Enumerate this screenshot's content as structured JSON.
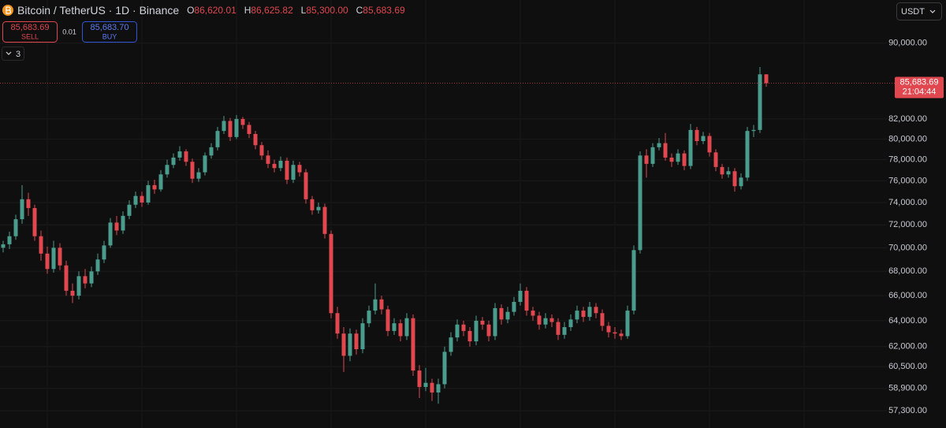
{
  "header": {
    "symbol": "Bitcoin / TetherUS · 1D · Binance",
    "ohlc": [
      {
        "label": "O",
        "value": "86,620.01"
      },
      {
        "label": "H",
        "value": "86,625.82"
      },
      {
        "label": "L",
        "value": "85,300.00"
      },
      {
        "label": "C",
        "value": "85,683.69"
      }
    ]
  },
  "trade": {
    "sell": {
      "price": "85,683.69",
      "label": "SELL"
    },
    "spread": "0.01",
    "buy": {
      "price": "85,683.70",
      "label": "BUY"
    }
  },
  "indicators_toggle": "3",
  "currency": "USDT",
  "chart_data": {
    "type": "candlestick",
    "log_scale": true,
    "grid": true,
    "up_color": "#4a9c8c",
    "down_color": "#e0474f",
    "ylim": [
      56100,
      94900
    ],
    "yticks": [
      {
        "value": 57300,
        "label": "57,300.00"
      },
      {
        "value": 58900,
        "label": "58,900.00"
      },
      {
        "value": 60500,
        "label": "60,500.00"
      },
      {
        "value": 62000,
        "label": "62,000.00"
      },
      {
        "value": 64000,
        "label": "64,000.00"
      },
      {
        "value": 66000,
        "label": "66,000.00"
      },
      {
        "value": 68000,
        "label": "68,000.00"
      },
      {
        "value": 70000,
        "label": "70,000.00"
      },
      {
        "value": 72000,
        "label": "72,000.00"
      },
      {
        "value": 74000,
        "label": "74,000.00"
      },
      {
        "value": 76000,
        "label": "76,000.00"
      },
      {
        "value": 78000,
        "label": "78,000.00"
      },
      {
        "value": 80000,
        "label": "80,000.00"
      },
      {
        "value": 82000,
        "label": "82,000.00"
      },
      {
        "value": 90000,
        "label": "90,000.00"
      }
    ],
    "last_price_label": "85,683.69",
    "countdown": "21:04:44",
    "ohlc": [
      [
        70000,
        70600,
        69600,
        70300
      ],
      [
        70300,
        71400,
        69900,
        71000
      ],
      [
        71000,
        72900,
        70700,
        72500
      ],
      [
        72500,
        75600,
        72100,
        74300
      ],
      [
        74300,
        74900,
        72800,
        73500
      ],
      [
        73500,
        73800,
        70600,
        71000
      ],
      [
        71000,
        71500,
        68900,
        69500
      ],
      [
        69500,
        70100,
        67800,
        68200
      ],
      [
        68200,
        70600,
        67900,
        70000
      ],
      [
        70000,
        70400,
        68100,
        68500
      ],
      [
        68500,
        68900,
        66000,
        66400
      ],
      [
        66400,
        67000,
        65400,
        66000
      ],
      [
        66000,
        68000,
        65700,
        67600
      ],
      [
        67600,
        68200,
        66600,
        67000
      ],
      [
        67000,
        68400,
        66700,
        68000
      ],
      [
        68000,
        69500,
        67700,
        69000
      ],
      [
        69000,
        70600,
        68700,
        70200
      ],
      [
        70200,
        72600,
        70000,
        72200
      ],
      [
        72200,
        72800,
        71100,
        71500
      ],
      [
        71500,
        73200,
        71200,
        72800
      ],
      [
        72800,
        74200,
        72500,
        73800
      ],
      [
        73800,
        75000,
        73500,
        74600
      ],
      [
        74600,
        75000,
        73600,
        74000
      ],
      [
        74000,
        76000,
        73800,
        75600
      ],
      [
        75600,
        76100,
        74800,
        75200
      ],
      [
        75200,
        77000,
        75000,
        76600
      ],
      [
        76600,
        78000,
        76300,
        77500
      ],
      [
        77500,
        78600,
        77200,
        78200
      ],
      [
        78200,
        79300,
        77900,
        78800
      ],
      [
        78800,
        79000,
        77400,
        77800
      ],
      [
        77800,
        78100,
        75800,
        76200
      ],
      [
        76200,
        77200,
        75900,
        76800
      ],
      [
        76800,
        78700,
        76500,
        78400
      ],
      [
        78400,
        79600,
        78100,
        79200
      ],
      [
        79200,
        81200,
        78900,
        80800
      ],
      [
        80800,
        82300,
        80500,
        81800
      ],
      [
        81800,
        82100,
        79800,
        80200
      ],
      [
        80200,
        82400,
        80000,
        82000
      ],
      [
        82000,
        82200,
        81000,
        81400
      ],
      [
        81400,
        81700,
        80100,
        80500
      ],
      [
        80500,
        80800,
        79000,
        79400
      ],
      [
        79400,
        79700,
        78000,
        78400
      ],
      [
        78400,
        78900,
        77200,
        77600
      ],
      [
        77600,
        78000,
        76800,
        77200
      ],
      [
        77200,
        78300,
        76900,
        77900
      ],
      [
        77900,
        78200,
        75700,
        76100
      ],
      [
        76100,
        77900,
        75800,
        77500
      ],
      [
        77500,
        77800,
        76400,
        76800
      ],
      [
        76800,
        77100,
        73900,
        74300
      ],
      [
        74300,
        74600,
        72900,
        73300
      ],
      [
        73300,
        74000,
        73000,
        73600
      ],
      [
        73600,
        73900,
        70800,
        71200
      ],
      [
        71200,
        71500,
        64200,
        64600
      ],
      [
        64600,
        65100,
        62600,
        63000
      ],
      [
        63000,
        63500,
        60100,
        61300
      ],
      [
        61300,
        63400,
        60900,
        63000
      ],
      [
        63000,
        63300,
        61400,
        61800
      ],
      [
        61800,
        64200,
        61500,
        63800
      ],
      [
        63800,
        65200,
        63500,
        64800
      ],
      [
        64800,
        67000,
        64500,
        65700
      ],
      [
        65700,
        66000,
        64500,
        64900
      ],
      [
        64900,
        65200,
        62800,
        63200
      ],
      [
        63200,
        64200,
        62900,
        63800
      ],
      [
        63800,
        64100,
        62400,
        62800
      ],
      [
        62800,
        64600,
        62500,
        64200
      ],
      [
        64200,
        64500,
        59800,
        60200
      ],
      [
        60200,
        60600,
        58200,
        59000
      ],
      [
        59000,
        60400,
        58700,
        59300
      ],
      [
        59300,
        59600,
        58000,
        58600
      ],
      [
        58600,
        59600,
        57800,
        59200
      ],
      [
        59200,
        62000,
        58900,
        61600
      ],
      [
        61600,
        63100,
        61300,
        62700
      ],
      [
        62700,
        64100,
        62400,
        63700
      ],
      [
        63700,
        64000,
        62800,
        63200
      ],
      [
        63200,
        63500,
        62000,
        62400
      ],
      [
        62400,
        64400,
        62100,
        64000
      ],
      [
        64000,
        64300,
        63300,
        63700
      ],
      [
        63700,
        64000,
        62400,
        62800
      ],
      [
        62800,
        65400,
        62500,
        65000
      ],
      [
        65000,
        65300,
        63700,
        64100
      ],
      [
        64100,
        65100,
        63800,
        64700
      ],
      [
        64700,
        65900,
        64400,
        65500
      ],
      [
        65500,
        67000,
        65200,
        66400
      ],
      [
        66400,
        66700,
        64400,
        64800
      ],
      [
        64800,
        65100,
        64000,
        64400
      ],
      [
        64400,
        64700,
        63300,
        63700
      ],
      [
        63700,
        64600,
        63400,
        64200
      ],
      [
        64200,
        64500,
        63500,
        63900
      ],
      [
        63900,
        64200,
        62500,
        62900
      ],
      [
        62900,
        63900,
        62600,
        63500
      ],
      [
        63500,
        64500,
        63200,
        64100
      ],
      [
        64100,
        65200,
        63800,
        64800
      ],
      [
        64800,
        65100,
        63900,
        64300
      ],
      [
        64300,
        65500,
        64000,
        65100
      ],
      [
        65100,
        65400,
        64200,
        64600
      ],
      [
        64600,
        64900,
        63200,
        63600
      ],
      [
        63600,
        63900,
        62700,
        63100
      ],
      [
        63100,
        63500,
        62600,
        63000
      ],
      [
        63000,
        63300,
        62500,
        62800
      ],
      [
        62800,
        65200,
        62600,
        64800
      ],
      [
        64800,
        70200,
        64500,
        69800
      ],
      [
        69800,
        78800,
        69500,
        78400
      ],
      [
        78400,
        79000,
        76300,
        77600
      ],
      [
        77600,
        79600,
        77300,
        79200
      ],
      [
        79200,
        80100,
        78900,
        79600
      ],
      [
        79600,
        80600,
        77900,
        78200
      ],
      [
        78200,
        78600,
        77300,
        77800
      ],
      [
        77800,
        79000,
        77500,
        78600
      ],
      [
        78600,
        78900,
        77000,
        77400
      ],
      [
        77400,
        81500,
        77100,
        80900
      ],
      [
        80900,
        81200,
        79400,
        79800
      ],
      [
        79800,
        80700,
        79500,
        80300
      ],
      [
        80300,
        80600,
        78300,
        78700
      ],
      [
        78700,
        79000,
        76900,
        77300
      ],
      [
        77300,
        77600,
        76200,
        76600
      ],
      [
        76600,
        77300,
        76300,
        76900
      ],
      [
        76900,
        77200,
        75000,
        75500
      ],
      [
        75500,
        76700,
        75200,
        76300
      ],
      [
        76300,
        81200,
        76000,
        80800
      ],
      [
        80800,
        81400,
        80200,
        80900
      ],
      [
        80900,
        87400,
        80600,
        86620.01
      ],
      [
        86620.01,
        86625.82,
        85300,
        85683.69
      ]
    ]
  }
}
